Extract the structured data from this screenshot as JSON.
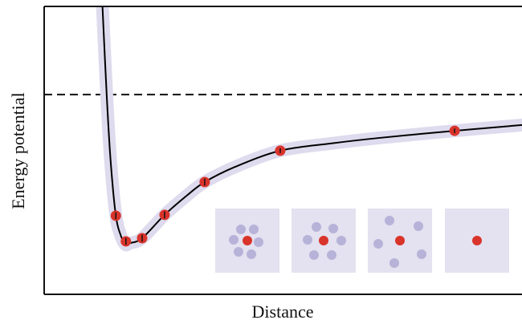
{
  "chart_data": {
    "type": "scatter",
    "x_label": "Distance",
    "y_label": "Energy potential",
    "xlim": [
      0,
      100
    ],
    "ylim": [
      0,
      100
    ],
    "x": [
      15,
      17.1,
      20.5,
      25.2,
      33.6,
      49.4,
      85.9
    ],
    "values": [
      27.3,
      18.4,
      19.5,
      27.6,
      39.0,
      49.9,
      56.8
    ],
    "errors": [
      1.2,
      1.2,
      1.2,
      1.2,
      1.2,
      0.8,
      0.8
    ],
    "color": "#d9342b",
    "fit": {
      "color": "#000000",
      "band_color": "#dedbee",
      "x": [
        12.2,
        13.1,
        13.9,
        15,
        16,
        17,
        18,
        20.5,
        25.2,
        30,
        33.6,
        40,
        49.4,
        60,
        70,
        85.9,
        100
      ],
      "values": [
        100,
        68.8,
        46.5,
        27.3,
        20.6,
        17.3,
        17.8,
        19.5,
        27.6,
        34.5,
        39.0,
        44.3,
        49.9,
        52.4,
        54.3,
        56.8,
        58.8
      ]
    },
    "dashed_line": 69.4
  }
}
